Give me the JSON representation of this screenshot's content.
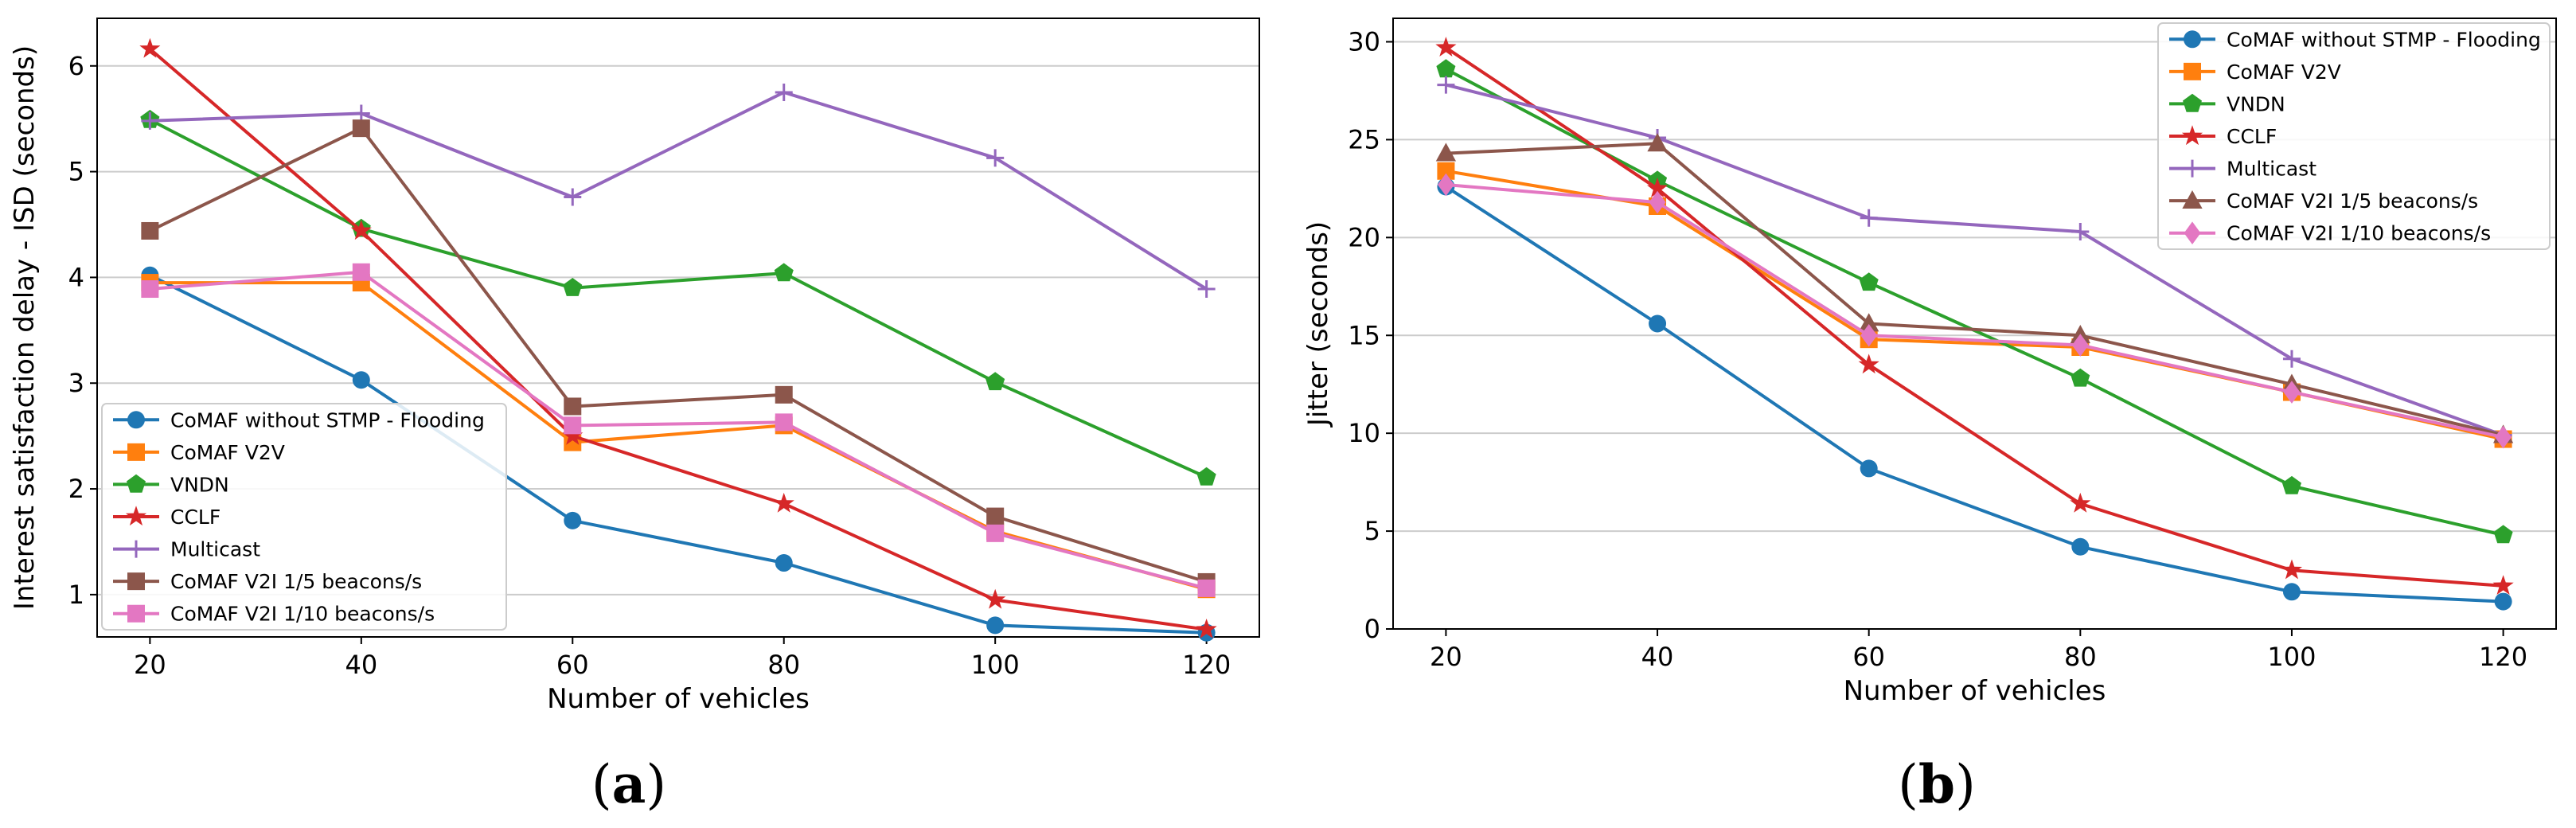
{
  "chart_data": [
    {
      "type": "line",
      "caption": {
        "open": "(",
        "letter": "a",
        "close": ")"
      },
      "xlabel": "Number of vehicles",
      "ylabel": "Interest satisfaction delay - ISD  (seconds)",
      "x": [
        20,
        40,
        60,
        80,
        100,
        120
      ],
      "xticks": [
        "20",
        "40",
        "60",
        "80",
        "100",
        "120"
      ],
      "yticks": [
        1,
        2,
        3,
        4,
        5,
        6
      ],
      "xlim": [
        15,
        125
      ],
      "ylim": [
        0.6,
        6.45
      ],
      "grid": "y",
      "legend": "lower-left",
      "series": [
        {
          "name": "CoMAF without STMP - Flooding",
          "color": "#1f77b4",
          "marker": "circle",
          "values": [
            4.02,
            3.03,
            1.7,
            1.3,
            0.71,
            0.64
          ]
        },
        {
          "name": "CoMAF V2V",
          "color": "#ff7f0e",
          "marker": "square",
          "values": [
            3.95,
            3.95,
            2.44,
            2.6,
            1.6,
            1.05
          ]
        },
        {
          "name": "VNDN",
          "color": "#2ca02c",
          "marker": "pentagon",
          "values": [
            5.49,
            4.46,
            3.9,
            4.04,
            3.01,
            2.11
          ]
        },
        {
          "name": "CCLF",
          "color": "#d62728",
          "marker": "star",
          "values": [
            6.16,
            4.44,
            2.5,
            1.86,
            0.95,
            0.67
          ]
        },
        {
          "name": "Multicast",
          "color": "#9467bd",
          "marker": "plus",
          "values": [
            5.48,
            5.55,
            4.76,
            5.75,
            5.13,
            3.89
          ]
        },
        {
          "name": "CoMAF V2I 1/5 beacons/s",
          "color": "#8c564b",
          "marker": "square",
          "values": [
            4.44,
            5.41,
            2.78,
            2.89,
            1.74,
            1.12
          ]
        },
        {
          "name": "CoMAF V2I 1/10 beacons/s",
          "color": "#e377c2",
          "marker": "square",
          "values": [
            3.89,
            4.05,
            2.6,
            2.63,
            1.58,
            1.06
          ]
        }
      ]
    },
    {
      "type": "line",
      "caption": {
        "open": "(",
        "letter": "b",
        "close": ")"
      },
      "xlabel": "Number of vehicles",
      "ylabel": "Jitter (seconds)",
      "x": [
        20,
        40,
        60,
        80,
        100,
        120
      ],
      "xticks": [
        "20",
        "40",
        "60",
        "80",
        "100",
        "120"
      ],
      "yticks": [
        0,
        5,
        10,
        15,
        20,
        25,
        30
      ],
      "xlim": [
        15,
        125
      ],
      "ylim": [
        0,
        31.2
      ],
      "grid": "y",
      "legend": "upper-right",
      "series": [
        {
          "name": "CoMAF without STMP - Flooding",
          "color": "#1f77b4",
          "marker": "circle",
          "values": [
            22.6,
            15.6,
            8.2,
            4.2,
            1.9,
            1.4
          ]
        },
        {
          "name": "CoMAF V2V",
          "color": "#ff7f0e",
          "marker": "square",
          "values": [
            23.4,
            21.6,
            14.8,
            14.4,
            12.1,
            9.7
          ]
        },
        {
          "name": "VNDN",
          "color": "#2ca02c",
          "marker": "pentagon",
          "values": [
            28.6,
            22.9,
            17.7,
            12.8,
            7.3,
            4.8
          ]
        },
        {
          "name": "CCLF",
          "color": "#d62728",
          "marker": "star",
          "values": [
            29.7,
            22.5,
            13.5,
            6.4,
            3.0,
            2.2
          ]
        },
        {
          "name": "Multicast",
          "color": "#9467bd",
          "marker": "plus",
          "values": [
            27.8,
            25.1,
            21.0,
            20.3,
            13.8,
            9.9
          ]
        },
        {
          "name": "CoMAF V2I 1/5 beacons/s",
          "color": "#8c564b",
          "marker": "triangle",
          "values": [
            24.3,
            24.8,
            15.6,
            15.0,
            12.5,
            9.9
          ]
        },
        {
          "name": "CoMAF V2I 1/10 beacons/s",
          "color": "#e377c2",
          "marker": "diamond",
          "values": [
            22.7,
            21.8,
            15.0,
            14.5,
            12.1,
            9.8
          ]
        }
      ]
    }
  ]
}
